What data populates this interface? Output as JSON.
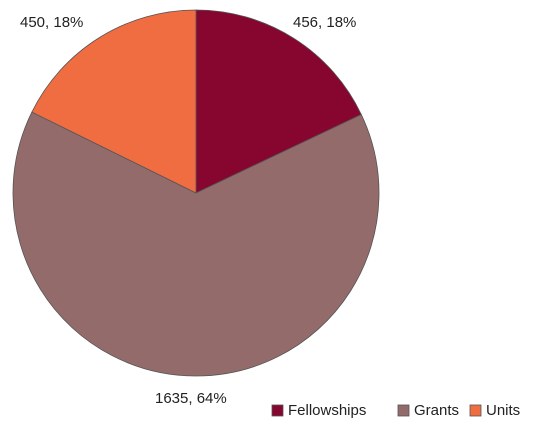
{
  "chart_data": {
    "type": "pie",
    "title": "",
    "slices": [
      {
        "label": "Fellowships",
        "value": 456,
        "percent": 18,
        "data_label": "456, 18%",
        "color": "#86062f"
      },
      {
        "label": "Grants",
        "value": 1635,
        "percent": 64,
        "data_label": "1635, 64%",
        "color": "#936b6b"
      },
      {
        "label": "Units",
        "value": 450,
        "percent": 18,
        "data_label": "450, 18%",
        "color": "#ef6d41"
      }
    ],
    "start_angle": "12 o'clock",
    "direction": "clockwise",
    "legend_position": "bottom-right",
    "slice_border_color": "#555555"
  }
}
